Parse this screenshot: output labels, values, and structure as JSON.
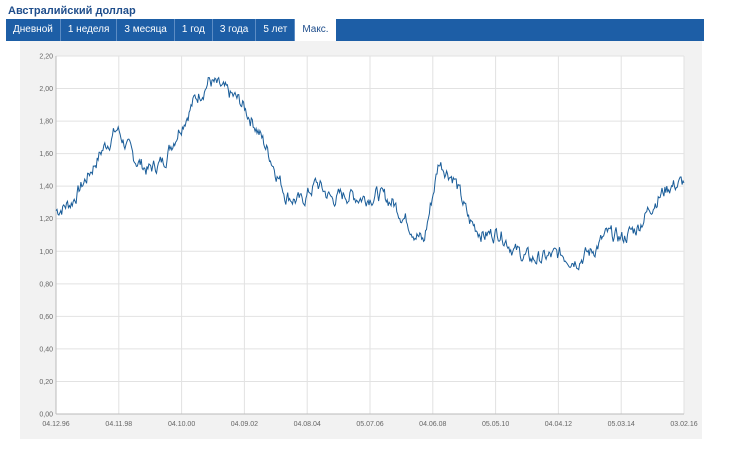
{
  "title": "Австралийский доллар",
  "tabs": [
    {
      "label": "Дневной",
      "active": false
    },
    {
      "label": "1 неделя",
      "active": false
    },
    {
      "label": "3 месяца",
      "active": false
    },
    {
      "label": "1 год",
      "active": false
    },
    {
      "label": "3 года",
      "active": false
    },
    {
      "label": "5 лет",
      "active": false
    },
    {
      "label": "Макс.",
      "active": true
    }
  ],
  "colors": {
    "line": "#1a5d99",
    "tabbar": "#1d5ea6",
    "title": "#1f4e8c",
    "grid": "#e2e2e2"
  },
  "chart_data": {
    "type": "line",
    "title": "",
    "xlabel": "",
    "ylabel": "",
    "ylim": [
      0,
      2.2
    ],
    "y_ticks": [
      {
        "value": 0.0,
        "label": "0,00"
      },
      {
        "value": 0.2,
        "label": "0,20"
      },
      {
        "value": 0.4,
        "label": "0,40"
      },
      {
        "value": 0.6,
        "label": "0,60"
      },
      {
        "value": 0.8,
        "label": "0,80"
      },
      {
        "value": 1.0,
        "label": "1,00"
      },
      {
        "value": 1.2,
        "label": "1,20"
      },
      {
        "value": 1.4,
        "label": "1,40"
      },
      {
        "value": 1.6,
        "label": "1,60"
      },
      {
        "value": 1.8,
        "label": "1,80"
      },
      {
        "value": 2.0,
        "label": "2,00"
      },
      {
        "value": 2.2,
        "label": "2,20"
      }
    ],
    "x_ticks": [
      "04.12.96",
      "04.11.98",
      "04.10.00",
      "04.09.02",
      "04.08.04",
      "05.07.06",
      "04.06.08",
      "05.05.10",
      "04.04.12",
      "05.03.14",
      "03.02.16"
    ],
    "grid": true,
    "series": [
      {
        "x": [
          "04.12.96",
          "05.1997",
          "12.1997",
          "05.1998",
          "10.1998",
          "03.1999",
          "08.1999",
          "01.2000",
          "06.2000",
          "10.2000",
          "04.2001",
          "09.2001",
          "02.2002",
          "09.2002",
          "02.2003",
          "09.2003",
          "05.2004",
          "09.2004",
          "05.2005",
          "10.2005",
          "05.2006",
          "10.2006",
          "05.2007",
          "10.2007",
          "05.2008",
          "09.2008",
          "01.2009",
          "07.2009",
          "11.2009",
          "05.2010",
          "10.2010",
          "05.2011",
          "09.2011",
          "04.2012",
          "10.2012",
          "05.2013",
          "10.2013",
          "05.2014",
          "10.2014",
          "05.2015",
          "10.2015",
          "03.02.16"
        ],
        "values": [
          1.25,
          1.3,
          1.45,
          1.62,
          1.75,
          1.58,
          1.5,
          1.55,
          1.75,
          1.92,
          2.05,
          1.98,
          1.92,
          1.78,
          1.58,
          1.35,
          1.3,
          1.42,
          1.32,
          1.35,
          1.33,
          1.35,
          1.3,
          1.18,
          1.05,
          1.55,
          1.45,
          1.18,
          1.1,
          1.12,
          1.0,
          0.95,
          0.96,
          0.98,
          0.95,
          1.0,
          1.1,
          1.08,
          1.15,
          1.3,
          1.4,
          1.42
        ]
      }
    ]
  }
}
